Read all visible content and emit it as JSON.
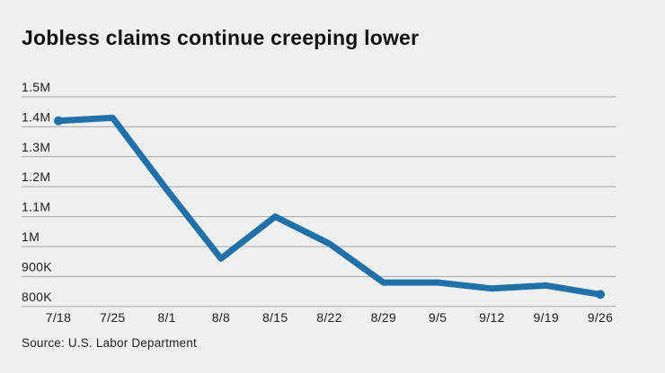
{
  "header": {
    "title": "Jobless claims continue creeping lower"
  },
  "footer": {
    "source": "Source: U.S. Labor Department"
  },
  "colors": {
    "background": "#edf0ef",
    "line": "#2170a8",
    "gridline": "#a3a6a5",
    "text": "#1c1c1c",
    "title_text": "#121212"
  },
  "chart_data": {
    "type": "line",
    "title": "Jobless claims continue creeping lower",
    "source": "Source: U.S. Labor Department",
    "categories": [
      "7/18",
      "7/25",
      "8/1",
      "8/8",
      "8/15",
      "8/22",
      "8/29",
      "9/5",
      "9/12",
      "9/19",
      "9/26"
    ],
    "values": [
      1.42,
      1.43,
      1.19,
      0.96,
      1.1,
      1.01,
      0.88,
      0.88,
      0.86,
      0.87,
      0.84
    ],
    "unit": "millions of claims",
    "y_ticks": [
      "1.5M",
      "1.4M",
      "1.3M",
      "1.2M",
      "1.1M",
      "1M",
      "900K",
      "800K"
    ],
    "y_tick_values": [
      1.5,
      1.4,
      1.3,
      1.2,
      1.1,
      1.0,
      0.9,
      0.8
    ],
    "ylim": [
      0.8,
      1.5
    ],
    "xlabel": "",
    "ylabel": "",
    "grid": true,
    "legend": "none",
    "marker_endpoints": true
  }
}
